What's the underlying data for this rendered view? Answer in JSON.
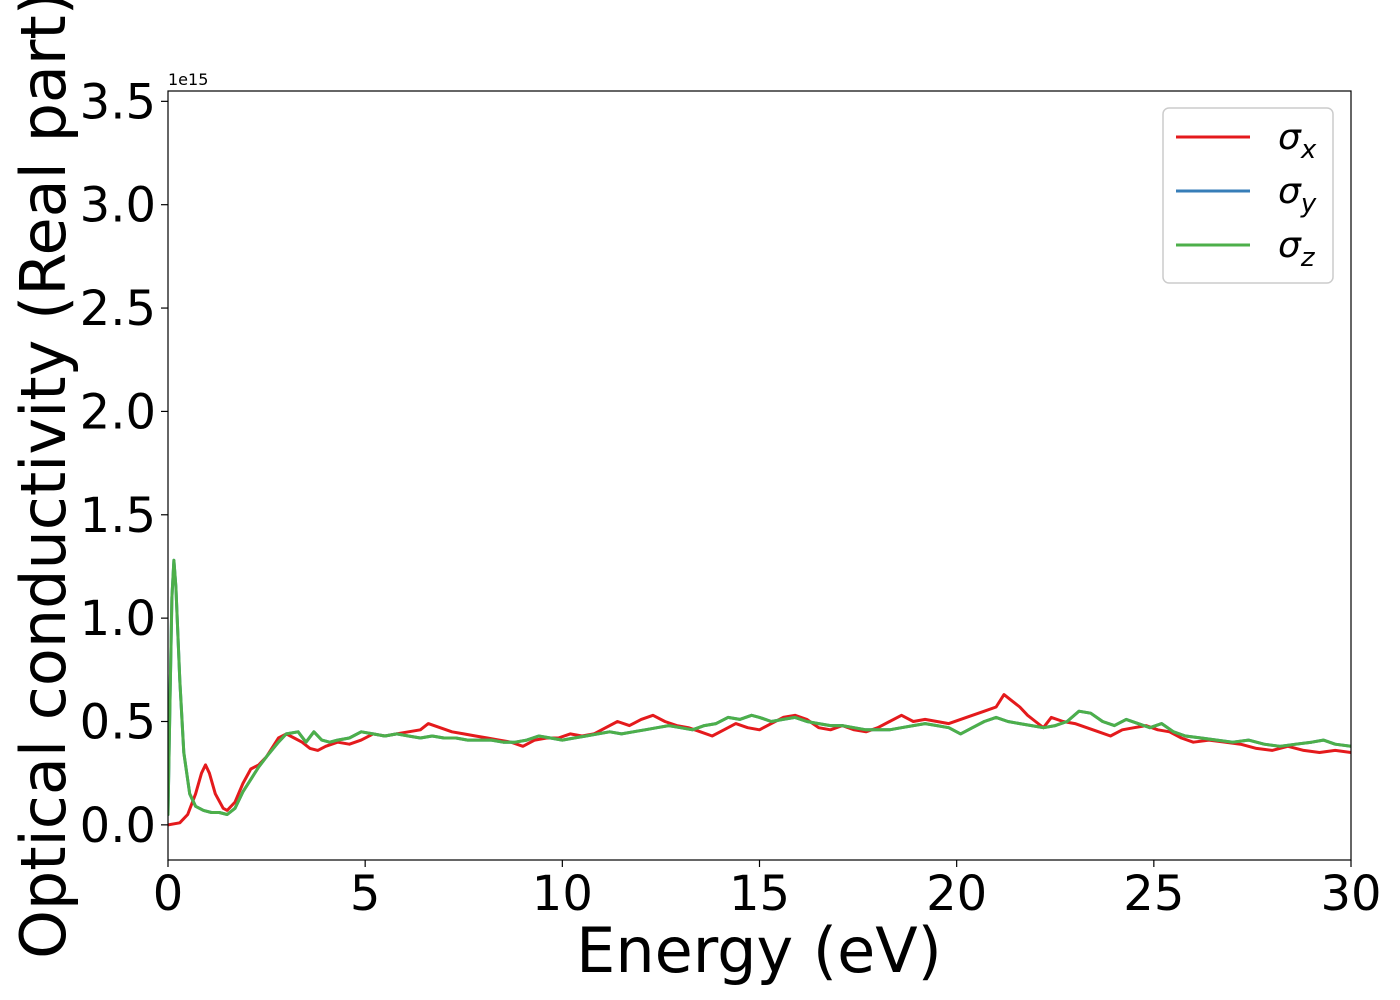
{
  "chart_data": {
    "type": "line",
    "xlabel": "Energy (eV)",
    "ylabel": "Optical conductivity (Real part)",
    "offset_text": "1e15",
    "xlim": [
      0,
      30
    ],
    "ylim": [
      -0.17,
      3.55
    ],
    "x_ticks": [
      0,
      5,
      10,
      15,
      20,
      25,
      30
    ],
    "x_tick_labels": [
      "0",
      "5",
      "10",
      "15",
      "20",
      "25",
      "30"
    ],
    "y_ticks": [
      0.0,
      0.5,
      1.0,
      1.5,
      2.0,
      2.5,
      3.0,
      3.5
    ],
    "y_tick_labels": [
      "0.0",
      "0.5",
      "1.0",
      "1.5",
      "2.0",
      "2.5",
      "3.0",
      "3.5"
    ],
    "legend_position": "top-right",
    "grid": false,
    "series": [
      {
        "name": "σx",
        "legend_base": "σ",
        "legend_sub": "x",
        "color": "#e41a1c",
        "x": [
          0,
          0.3,
          0.5,
          0.7,
          0.85,
          0.95,
          1.05,
          1.2,
          1.4,
          1.5,
          1.7,
          1.9,
          2.1,
          2.3,
          2.5,
          2.8,
          3.0,
          3.2,
          3.4,
          3.6,
          3.8,
          4.0,
          4.3,
          4.6,
          4.9,
          5.2,
          5.5,
          5.8,
          6.1,
          6.4,
          6.6,
          6.9,
          7.2,
          7.5,
          7.8,
          8.1,
          8.4,
          8.7,
          9.0,
          9.3,
          9.6,
          9.9,
          10.2,
          10.5,
          10.8,
          11.1,
          11.4,
          11.7,
          12.0,
          12.3,
          12.6,
          12.9,
          13.2,
          13.5,
          13.8,
          14.1,
          14.4,
          14.7,
          15.0,
          15.3,
          15.6,
          15.9,
          16.2,
          16.5,
          16.8,
          17.1,
          17.4,
          17.7,
          18.0,
          18.3,
          18.6,
          18.9,
          19.2,
          19.5,
          19.8,
          20.1,
          20.4,
          20.7,
          21.0,
          21.2,
          21.4,
          21.6,
          21.8,
          22.0,
          22.2,
          22.4,
          22.7,
          23.0,
          23.3,
          23.6,
          23.9,
          24.2,
          24.5,
          24.8,
          25.1,
          25.4,
          25.7,
          26.0,
          26.4,
          26.8,
          27.2,
          27.6,
          28.0,
          28.4,
          28.8,
          29.2,
          29.6,
          30.0
        ],
        "y": [
          0.0,
          0.01,
          0.05,
          0.15,
          0.25,
          0.29,
          0.25,
          0.15,
          0.08,
          0.07,
          0.11,
          0.2,
          0.27,
          0.29,
          0.33,
          0.42,
          0.44,
          0.42,
          0.4,
          0.37,
          0.36,
          0.38,
          0.4,
          0.39,
          0.41,
          0.44,
          0.43,
          0.44,
          0.45,
          0.46,
          0.49,
          0.47,
          0.45,
          0.44,
          0.43,
          0.42,
          0.41,
          0.4,
          0.38,
          0.41,
          0.42,
          0.42,
          0.44,
          0.43,
          0.44,
          0.47,
          0.5,
          0.48,
          0.51,
          0.53,
          0.5,
          0.48,
          0.47,
          0.45,
          0.43,
          0.46,
          0.49,
          0.47,
          0.46,
          0.49,
          0.52,
          0.53,
          0.51,
          0.47,
          0.46,
          0.48,
          0.46,
          0.45,
          0.47,
          0.5,
          0.53,
          0.5,
          0.51,
          0.5,
          0.49,
          0.51,
          0.53,
          0.55,
          0.57,
          0.63,
          0.6,
          0.57,
          0.53,
          0.5,
          0.47,
          0.52,
          0.5,
          0.49,
          0.47,
          0.45,
          0.43,
          0.46,
          0.47,
          0.48,
          0.46,
          0.45,
          0.42,
          0.4,
          0.41,
          0.4,
          0.39,
          0.37,
          0.36,
          0.38,
          0.36,
          0.35,
          0.36,
          0.35
        ]
      },
      {
        "name": "σy",
        "legend_base": "σ",
        "legend_sub": "y",
        "color": "#377eb8",
        "x": [
          0,
          0.05,
          0.1,
          0.15,
          0.2,
          0.3,
          0.4,
          0.55,
          0.7,
          0.9,
          1.1,
          1.3,
          1.5,
          1.7,
          1.9,
          2.1,
          2.3,
          2.5,
          2.8,
          3.0,
          3.3,
          3.5,
          3.7,
          3.9,
          4.1,
          4.3,
          4.6,
          4.9,
          5.2,
          5.5,
          5.8,
          6.1,
          6.4,
          6.7,
          7.0,
          7.3,
          7.6,
          7.9,
          8.2,
          8.5,
          8.8,
          9.1,
          9.4,
          9.7,
          10.0,
          10.3,
          10.6,
          10.9,
          11.2,
          11.5,
          11.8,
          12.1,
          12.4,
          12.7,
          13.0,
          13.3,
          13.6,
          13.9,
          14.2,
          14.5,
          14.8,
          15.0,
          15.3,
          15.6,
          15.9,
          16.2,
          16.5,
          16.8,
          17.1,
          17.4,
          17.7,
          18.0,
          18.3,
          18.6,
          18.9,
          19.2,
          19.5,
          19.8,
          20.1,
          20.4,
          20.7,
          21.0,
          21.3,
          21.6,
          21.9,
          22.2,
          22.5,
          22.8,
          23.1,
          23.4,
          23.7,
          24.0,
          24.3,
          24.6,
          24.9,
          25.2,
          25.5,
          25.8,
          26.2,
          26.6,
          27.0,
          27.4,
          27.8,
          28.2,
          28.6,
          29.0,
          29.3,
          29.6,
          30.0
        ],
        "y": [
          0.05,
          0.6,
          1.1,
          1.28,
          1.15,
          0.7,
          0.35,
          0.15,
          0.09,
          0.07,
          0.06,
          0.06,
          0.05,
          0.08,
          0.16,
          0.22,
          0.28,
          0.33,
          0.4,
          0.44,
          0.45,
          0.4,
          0.45,
          0.41,
          0.4,
          0.41,
          0.42,
          0.45,
          0.44,
          0.43,
          0.44,
          0.43,
          0.42,
          0.43,
          0.42,
          0.42,
          0.41,
          0.41,
          0.41,
          0.4,
          0.4,
          0.41,
          0.43,
          0.42,
          0.41,
          0.42,
          0.43,
          0.44,
          0.45,
          0.44,
          0.45,
          0.46,
          0.47,
          0.48,
          0.47,
          0.46,
          0.48,
          0.49,
          0.52,
          0.51,
          0.53,
          0.52,
          0.5,
          0.51,
          0.52,
          0.5,
          0.49,
          0.48,
          0.48,
          0.47,
          0.46,
          0.46,
          0.46,
          0.47,
          0.48,
          0.49,
          0.48,
          0.47,
          0.44,
          0.47,
          0.5,
          0.52,
          0.5,
          0.49,
          0.48,
          0.47,
          0.48,
          0.5,
          0.55,
          0.54,
          0.5,
          0.48,
          0.51,
          0.49,
          0.47,
          0.49,
          0.45,
          0.43,
          0.42,
          0.41,
          0.4,
          0.41,
          0.39,
          0.38,
          0.39,
          0.4,
          0.41,
          0.39,
          0.38
        ]
      },
      {
        "name": "σz",
        "legend_base": "σ",
        "legend_sub": "z",
        "color": "#4daf4a",
        "x": [
          0,
          0.05,
          0.1,
          0.15,
          0.2,
          0.3,
          0.4,
          0.55,
          0.7,
          0.9,
          1.1,
          1.3,
          1.5,
          1.7,
          1.9,
          2.1,
          2.3,
          2.5,
          2.8,
          3.0,
          3.3,
          3.5,
          3.7,
          3.9,
          4.1,
          4.3,
          4.6,
          4.9,
          5.2,
          5.5,
          5.8,
          6.1,
          6.4,
          6.7,
          7.0,
          7.3,
          7.6,
          7.9,
          8.2,
          8.5,
          8.8,
          9.1,
          9.4,
          9.7,
          10.0,
          10.3,
          10.6,
          10.9,
          11.2,
          11.5,
          11.8,
          12.1,
          12.4,
          12.7,
          13.0,
          13.3,
          13.6,
          13.9,
          14.2,
          14.5,
          14.8,
          15.0,
          15.3,
          15.6,
          15.9,
          16.2,
          16.5,
          16.8,
          17.1,
          17.4,
          17.7,
          18.0,
          18.3,
          18.6,
          18.9,
          19.2,
          19.5,
          19.8,
          20.1,
          20.4,
          20.7,
          21.0,
          21.3,
          21.6,
          21.9,
          22.2,
          22.5,
          22.8,
          23.1,
          23.4,
          23.7,
          24.0,
          24.3,
          24.6,
          24.9,
          25.2,
          25.5,
          25.8,
          26.2,
          26.6,
          27.0,
          27.4,
          27.8,
          28.2,
          28.6,
          29.0,
          29.3,
          29.6,
          30.0
        ],
        "y": [
          0.05,
          0.6,
          1.1,
          1.28,
          1.15,
          0.7,
          0.35,
          0.15,
          0.09,
          0.07,
          0.06,
          0.06,
          0.05,
          0.08,
          0.16,
          0.22,
          0.28,
          0.33,
          0.4,
          0.44,
          0.45,
          0.4,
          0.45,
          0.41,
          0.4,
          0.41,
          0.42,
          0.45,
          0.44,
          0.43,
          0.44,
          0.43,
          0.42,
          0.43,
          0.42,
          0.42,
          0.41,
          0.41,
          0.41,
          0.4,
          0.4,
          0.41,
          0.43,
          0.42,
          0.41,
          0.42,
          0.43,
          0.44,
          0.45,
          0.44,
          0.45,
          0.46,
          0.47,
          0.48,
          0.47,
          0.46,
          0.48,
          0.49,
          0.52,
          0.51,
          0.53,
          0.52,
          0.5,
          0.51,
          0.52,
          0.5,
          0.49,
          0.48,
          0.48,
          0.47,
          0.46,
          0.46,
          0.46,
          0.47,
          0.48,
          0.49,
          0.48,
          0.47,
          0.44,
          0.47,
          0.5,
          0.52,
          0.5,
          0.49,
          0.48,
          0.47,
          0.48,
          0.5,
          0.55,
          0.54,
          0.5,
          0.48,
          0.51,
          0.49,
          0.47,
          0.49,
          0.45,
          0.43,
          0.42,
          0.41,
          0.4,
          0.41,
          0.39,
          0.38,
          0.39,
          0.4,
          0.41,
          0.39,
          0.38
        ]
      }
    ]
  }
}
